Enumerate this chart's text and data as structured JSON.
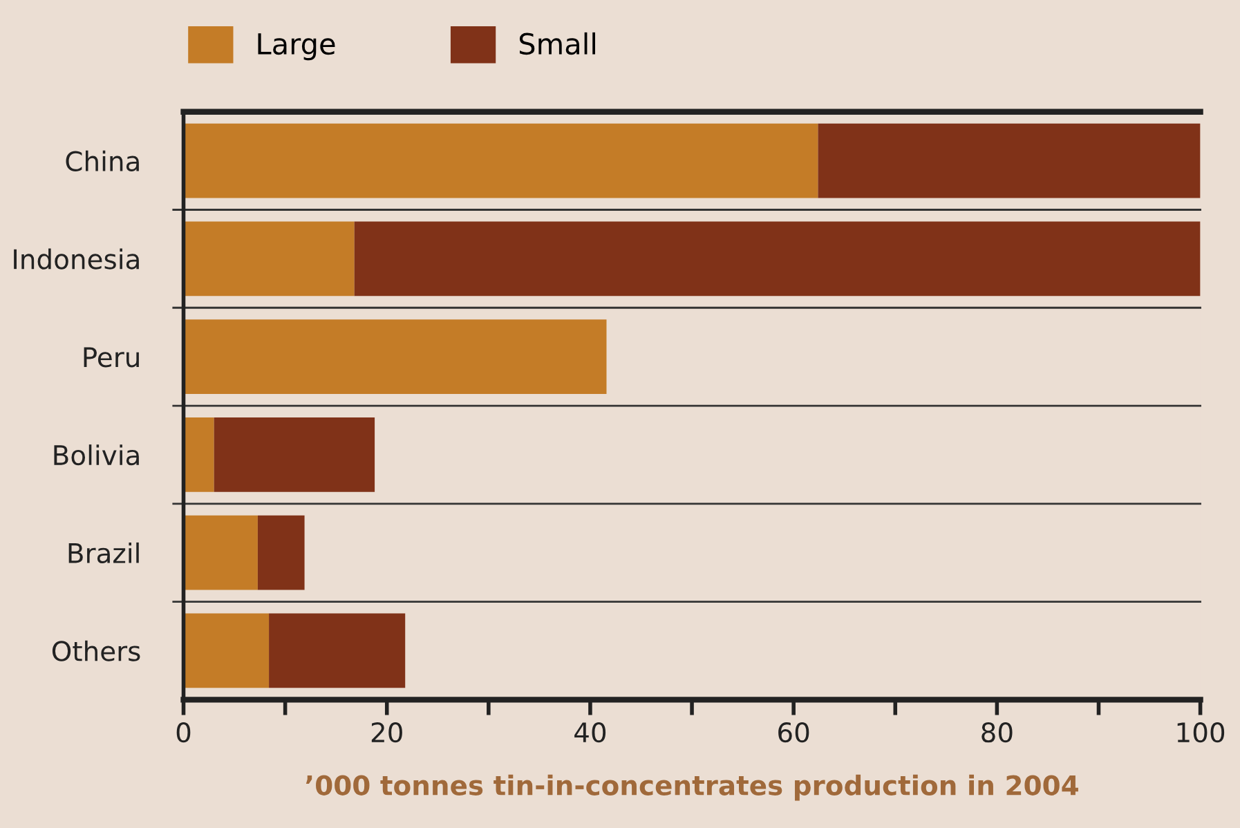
{
  "chart_data": {
    "type": "bar",
    "orientation": "horizontal",
    "stacked": true,
    "xlabel": "’000 tonnes tin-in-concentrates production in 2004",
    "categories": [
      "China",
      "Indonesia",
      "Peru",
      "Bolivia",
      "Brazil",
      "Others"
    ],
    "series": [
      {
        "name": "Large",
        "color": "#c47c27",
        "values": [
          62.4,
          16.8,
          41.6,
          3.0,
          7.3,
          8.4
        ]
      },
      {
        "name": "Small",
        "color": "#803218",
        "values": [
          37.6,
          83.2,
          0,
          15.8,
          4.6,
          13.4
        ]
      }
    ],
    "xlim": [
      0,
      100
    ],
    "xticks": [
      0,
      {
        "value": 10,
        "label": null
      },
      20,
      {
        "value": 30,
        "label": null
      },
      40,
      {
        "value": 50,
        "label": null
      },
      60,
      {
        "value": 70,
        "label": null
      },
      80,
      {
        "value": 90,
        "label": null
      },
      100
    ],
    "grid": false,
    "legend": "top left"
  }
}
